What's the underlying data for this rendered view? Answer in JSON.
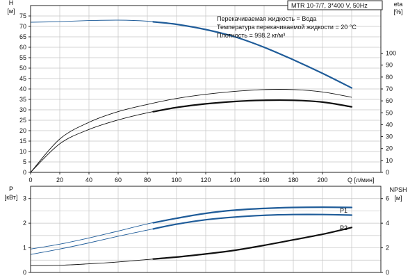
{
  "header": {
    "model": "MTR 10-7/7, 3*400 V, 50Hz",
    "info_lines": [
      "Перекачиваемая жидкость = Вода",
      "Температура перекачиваемой жидкости = 20 °C",
      "Плотность = 998.2 кг/м³"
    ]
  },
  "colors": {
    "pump_curve": "#1f5c99",
    "efficiency_curve": "#111111",
    "grid": "#c4c4c4",
    "power_curve": "#1f5c99",
    "npsh_curve": "#111111"
  },
  "chart_data": [
    {
      "type": "line",
      "name": "head-efficiency",
      "xlabel": "Q [л/мин]",
      "x_ticks": [
        0,
        20,
        40,
        60,
        80,
        100,
        120,
        140,
        160,
        180,
        200
      ],
      "xlim": [
        0,
        240
      ],
      "left_axis": {
        "label_line1": "H",
        "label_line2": "[м]",
        "ticks": [
          0,
          5,
          10,
          15,
          20,
          25,
          30,
          35,
          40,
          45,
          50,
          55,
          60,
          65,
          70,
          75
        ],
        "range": [
          0,
          80
        ]
      },
      "right_axis": {
        "label_line1": "eta",
        "label_line2": "[%]",
        "ticks": [
          0,
          10,
          20,
          30,
          40,
          50,
          60,
          70,
          80,
          90,
          100
        ],
        "range": [
          0,
          140
        ]
      },
      "grid": true,
      "series": [
        {
          "axis": "left",
          "style": "thin-thick",
          "color": "#1f5c99",
          "thick_from": 84,
          "x": [
            0,
            20,
            40,
            60,
            80,
            100,
            120,
            140,
            160,
            180,
            200,
            220
          ],
          "y": [
            72,
            72.3,
            72.8,
            73,
            72.5,
            71,
            68.5,
            65,
            60,
            54,
            47.5,
            40.5
          ]
        },
        {
          "axis": "right",
          "style": "thin",
          "color": "#111111",
          "x": [
            0,
            20,
            40,
            60,
            80,
            100,
            120,
            140,
            160,
            180,
            200,
            220
          ],
          "y": [
            0,
            28,
            42,
            51,
            57,
            62,
            65.5,
            68,
            69.5,
            69.5,
            67.5,
            63
          ]
        },
        {
          "axis": "right",
          "style": "thin-thick",
          "color": "#111111",
          "thick_from": 84,
          "x": [
            0,
            20,
            40,
            60,
            80,
            100,
            120,
            140,
            160,
            180,
            200,
            220
          ],
          "y": [
            0,
            24,
            36,
            44,
            50,
            54.5,
            57.5,
            59.5,
            60.5,
            60.5,
            59,
            55
          ]
        }
      ]
    },
    {
      "type": "line",
      "name": "power-npsh",
      "xlim": [
        0,
        240
      ],
      "left_axis": {
        "label_line1": "P",
        "label_line2": "[кВт]",
        "ticks": [
          0,
          1,
          2,
          3
        ],
        "range": [
          0,
          3.5
        ]
      },
      "right_axis": {
        "label_line1": "NPSH",
        "label_line2": "[м]",
        "ticks": [
          0,
          2,
          4,
          6
        ],
        "range": [
          0,
          7
        ]
      },
      "grid": true,
      "series": [
        {
          "name": "P1",
          "axis": "left",
          "style": "thin-thick",
          "color": "#1f5c99",
          "thick_from": 84,
          "x": [
            0,
            20,
            40,
            60,
            80,
            100,
            120,
            140,
            160,
            180,
            200,
            220
          ],
          "y": [
            0.95,
            1.15,
            1.4,
            1.68,
            1.97,
            2.2,
            2.4,
            2.53,
            2.6,
            2.64,
            2.65,
            2.64
          ]
        },
        {
          "name": "P2",
          "axis": "left",
          "style": "thin-thick",
          "color": "#1f5c99",
          "thick_from": 84,
          "x": [
            0,
            20,
            40,
            60,
            80,
            100,
            120,
            140,
            160,
            180,
            200,
            220
          ],
          "y": [
            0.73,
            0.95,
            1.2,
            1.47,
            1.72,
            1.96,
            2.14,
            2.25,
            2.32,
            2.35,
            2.35,
            2.33
          ]
        },
        {
          "axis": "right",
          "style": "thin-thick",
          "color": "#111111",
          "thick_from": 84,
          "x": [
            0,
            20,
            40,
            60,
            80,
            100,
            120,
            140,
            160,
            180,
            200,
            220
          ],
          "y": [
            0.55,
            0.58,
            0.7,
            0.85,
            1.05,
            1.25,
            1.5,
            1.8,
            2.2,
            2.65,
            3.1,
            3.65
          ]
        }
      ]
    }
  ]
}
